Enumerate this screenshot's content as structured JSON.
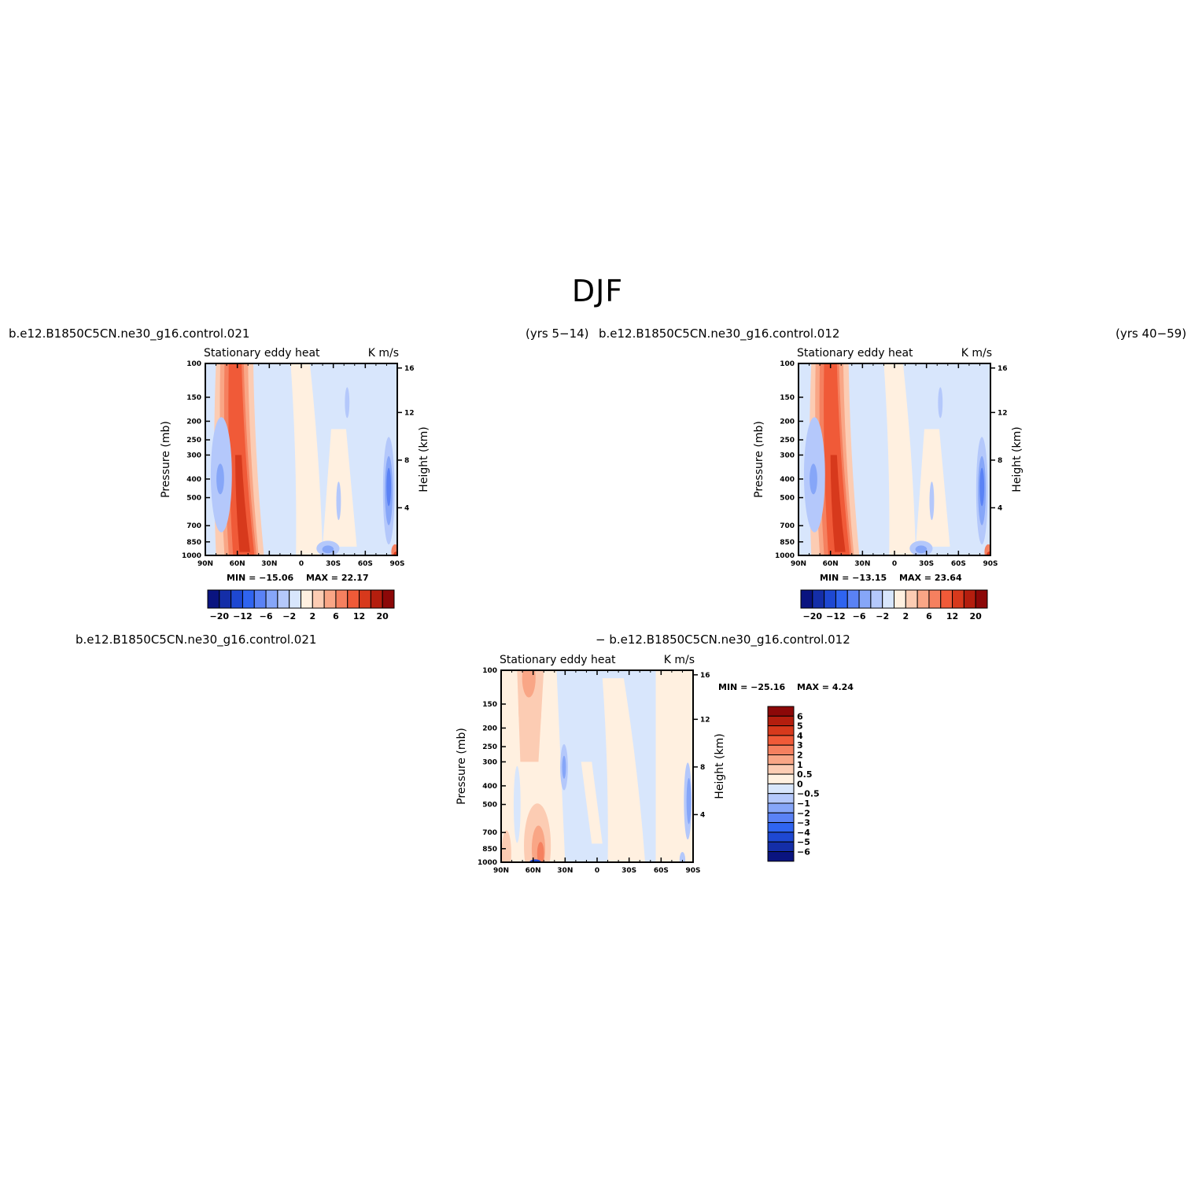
{
  "page": {
    "title": "DJF",
    "header_left_1": "b.e12.B1850C5CN.ne30_g16.control.021",
    "header_left_1_yrs": "(yrs 5−14)",
    "header_right_1": "b.e12.B1850C5CN.ne30_g16.control.012",
    "header_right_1_yrs": "(yrs 40−59)",
    "diff_left": "b.e12.B1850C5CN.ne30_g16.control.021",
    "diff_right": "− b.e12.B1850C5CN.ne30_g16.control.012"
  },
  "colors": {
    "panel1": [
      "#0a1480",
      "#142ea8",
      "#1e48d2",
      "#2f64f0",
      "#5a82f5",
      "#86a6f8",
      "#b4c8fb",
      "#d8e6fc",
      "#fff0e0",
      "#fcccb3",
      "#f9a686",
      "#f5805f",
      "#f05a38",
      "#d7391c",
      "#b41e0e",
      "#8c0808"
    ],
    "panel3": [
      "#8c0808",
      "#b41e0e",
      "#d7391c",
      "#f05a38",
      "#f5805f",
      "#f9a686",
      "#fcccb3",
      "#fff0e0",
      "#d8e6fc",
      "#b4c8fb",
      "#86a6f8",
      "#5a82f5",
      "#2f64f0",
      "#1e48d2",
      "#142ea8",
      "#0a1480"
    ]
  },
  "chart_data": [
    {
      "type": "heatmap",
      "title": "Stationary eddy heat",
      "units": "K m/s",
      "xlabel": "",
      "ylabel": "Pressure (mb)",
      "ylabel_right": "Height (km)",
      "x_ticks": [
        "90N",
        "60N",
        "30N",
        "0",
        "30S",
        "60S",
        "90S"
      ],
      "y_ticks": [
        "100",
        "150",
        "200",
        "250",
        "300",
        "400",
        "500",
        "700",
        "850",
        "1000"
      ],
      "y_ticks_right": [
        "16",
        "12",
        "8",
        "4"
      ],
      "min": "MIN = −15.06",
      "max": "MAX =   22.17",
      "colorbar_labels": [
        "−20",
        "−12",
        "−6",
        "−2",
        "2",
        "6",
        "12",
        "20"
      ],
      "colorbar_levels": [
        "-20",
        "-16",
        "-12",
        "-8",
        "-6",
        "-4",
        "-2",
        "0",
        "2",
        "4",
        "6",
        "8",
        "12",
        "16",
        "20"
      ],
      "features": [
        {
          "lat": 52,
          "p_center": 400,
          "value": 16
        },
        {
          "lat": 75,
          "p_center": 400,
          "value": -4
        },
        {
          "lat": -82,
          "p_center": 450,
          "value": -6
        },
        {
          "lat": 10,
          "p_center": 350,
          "value": 1
        }
      ]
    },
    {
      "type": "heatmap",
      "title": "Stationary eddy heat",
      "units": "K m/s",
      "xlabel": "",
      "ylabel": "Pressure (mb)",
      "ylabel_right": "Height (km)",
      "x_ticks": [
        "90N",
        "60N",
        "30N",
        "0",
        "30S",
        "60S",
        "90S"
      ],
      "y_ticks": [
        "100",
        "150",
        "200",
        "250",
        "300",
        "400",
        "500",
        "700",
        "850",
        "1000"
      ],
      "y_ticks_right": [
        "16",
        "12",
        "8",
        "4"
      ],
      "min": "MIN = −13.15",
      "max": "MAX =   23.64",
      "colorbar_labels": [
        "−20",
        "−12",
        "−6",
        "−2",
        "2",
        "6",
        "12",
        "20"
      ],
      "colorbar_levels": [
        "-20",
        "-16",
        "-12",
        "-8",
        "-6",
        "-4",
        "-2",
        "0",
        "2",
        "4",
        "6",
        "8",
        "12",
        "16",
        "20"
      ],
      "features": [
        {
          "lat": 50,
          "p_center": 400,
          "value": 18
        },
        {
          "lat": 75,
          "p_center": 400,
          "value": -4
        },
        {
          "lat": -82,
          "p_center": 450,
          "value": -6
        },
        {
          "lat": 10,
          "p_center": 350,
          "value": 1
        }
      ]
    },
    {
      "type": "heatmap",
      "title": "Stationary eddy heat",
      "units": "K m/s",
      "xlabel": "",
      "ylabel": "Pressure (mb)",
      "ylabel_right": "Height (km)",
      "x_ticks": [
        "90N",
        "60N",
        "30N",
        "0",
        "30S",
        "60S",
        "90S"
      ],
      "y_ticks": [
        "100",
        "150",
        "200",
        "250",
        "300",
        "400",
        "500",
        "700",
        "850",
        "1000"
      ],
      "y_ticks_right": [
        "16",
        "12",
        "8",
        "4"
      ],
      "min": "MIN = −25.16",
      "max": "MAX =    4.24",
      "colorbar_labels": [
        "6",
        "5",
        "4",
        "3",
        "2",
        "1",
        "0.5",
        "0",
        "−0.5",
        "−1",
        "−2",
        "−3",
        "−4",
        "−5",
        "−6"
      ],
      "features": [
        {
          "lat": 62,
          "p_center": 200,
          "value": 2
        },
        {
          "lat": 55,
          "p_center": 850,
          "value": 3
        },
        {
          "lat": 35,
          "p_center": 350,
          "value": -0.5
        },
        {
          "lat": -75,
          "p_center": 400,
          "value": 0.5
        },
        {
          "lat": -87,
          "p_center": 450,
          "value": -2
        }
      ]
    }
  ]
}
